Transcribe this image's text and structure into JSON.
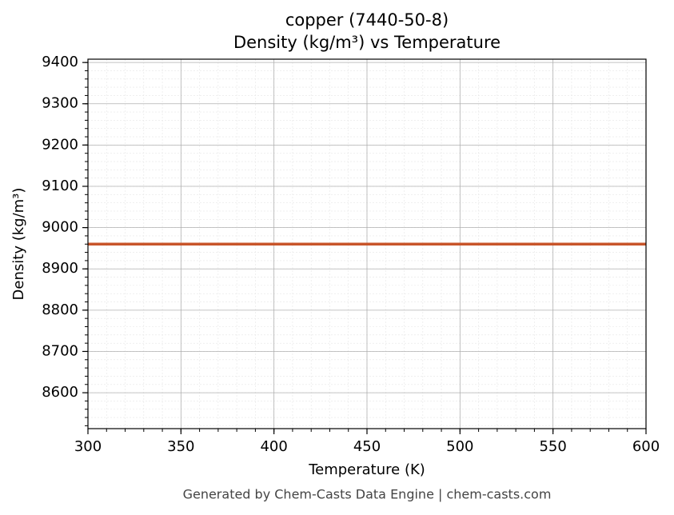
{
  "chart_data": {
    "type": "line",
    "title": "copper (7440-50-8)",
    "subtitle": "Density (kg/m³) vs Temperature",
    "xlabel": "Temperature (K)",
    "ylabel": "Density (kg/m³)",
    "x": [
      300,
      600
    ],
    "series": [
      {
        "name": "Density",
        "color": "#c8552a",
        "values": [
          8960,
          8960
        ]
      }
    ],
    "xlim": [
      300,
      600
    ],
    "xticks": [
      300,
      350,
      400,
      450,
      500,
      550,
      600
    ],
    "ylim": [
      8513,
      9408
    ],
    "yticks": [
      8600,
      8700,
      8800,
      8900,
      9000,
      9100,
      9200,
      9300,
      9400
    ],
    "grid": true,
    "minor_grid": true,
    "footer": "Generated by Chem-Casts Data Engine | chem-casts.com"
  }
}
